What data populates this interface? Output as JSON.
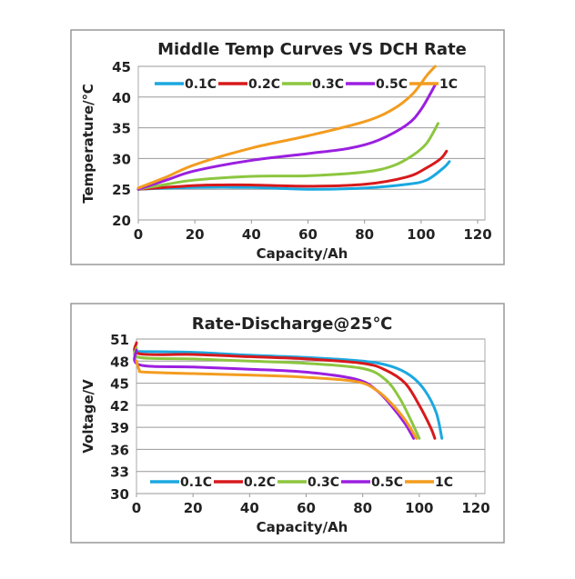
{
  "chart_data": [
    {
      "type": "line",
      "title": "Middle Temp Curves VS DCH Rate",
      "xlabel": "Capacity/Ah",
      "ylabel": "Temperature/℃",
      "xlim": [
        0,
        120
      ],
      "ylim": [
        20,
        45
      ],
      "xticks": [
        "0",
        "20",
        "40",
        "60",
        "80",
        "100",
        "120"
      ],
      "yticks": [
        "20",
        "25",
        "30",
        "35",
        "40",
        "45"
      ],
      "grid": "horizontal",
      "legend": "top",
      "series": [
        {
          "name": "0.1C",
          "color": "#1BA8E0",
          "x": [
            0,
            20,
            40,
            60,
            80,
            95,
            102,
            108,
            110
          ],
          "y": [
            25,
            25.3,
            25.3,
            25,
            25.2,
            25.8,
            26.5,
            28.5,
            29.5
          ]
        },
        {
          "name": "0.2C",
          "color": "#D7191C",
          "x": [
            0,
            20,
            30,
            40,
            60,
            80,
            95,
            102,
            107,
            109
          ],
          "y": [
            25,
            25.6,
            25.7,
            25.7,
            25.5,
            25.8,
            27,
            28.5,
            30,
            31.2
          ]
        },
        {
          "name": "0.3C",
          "color": "#8CC63F",
          "x": [
            0,
            10,
            20,
            40,
            60,
            80,
            90,
            97,
            102,
            106
          ],
          "y": [
            25,
            25.8,
            26.5,
            27.1,
            27.2,
            27.8,
            28.8,
            30.5,
            32.5,
            35.7
          ]
        },
        {
          "name": "0.5C",
          "color": "#9B1FE0",
          "x": [
            0,
            10,
            20,
            40,
            60,
            75,
            85,
            95,
            100,
            105
          ],
          "y": [
            25,
            26.5,
            28,
            29.7,
            30.8,
            31.7,
            33,
            35.5,
            38,
            42
          ]
        },
        {
          "name": "1C",
          "color": "#F39C1F",
          "x": [
            0,
            10,
            20,
            40,
            60,
            80,
            90,
            97,
            102,
            105
          ],
          "y": [
            25.2,
            27,
            29,
            31.7,
            33.7,
            36,
            38,
            40.5,
            43.5,
            45
          ]
        }
      ]
    },
    {
      "type": "line",
      "title": "Rate-Discharge@25℃",
      "xlabel": "Capacity/Ah",
      "ylabel": "Voltage/V",
      "xlim": [
        0,
        120
      ],
      "ylim": [
        30,
        51
      ],
      "xticks": [
        "0",
        "20",
        "40",
        "60",
        "80",
        "100",
        "120"
      ],
      "yticks": [
        "30",
        "33",
        "36",
        "39",
        "42",
        "45",
        "48",
        "51"
      ],
      "grid": "horizontal",
      "legend": "bottom",
      "series": [
        {
          "name": "0.1C",
          "color": "#1BA8E0",
          "x": [
            0,
            1,
            20,
            40,
            60,
            80,
            90,
            97,
            102,
            106,
            108
          ],
          "y": [
            49.3,
            49.3,
            49.2,
            48.8,
            48.5,
            48,
            47.3,
            46,
            44,
            41,
            37.5
          ]
        },
        {
          "name": "0.2C",
          "color": "#D7191C",
          "x": [
            0,
            1,
            20,
            40,
            60,
            80,
            88,
            95,
            100,
            104,
            105.5
          ],
          "y": [
            50.5,
            49,
            48.9,
            48.6,
            48.3,
            47.7,
            46.8,
            45,
            42,
            39,
            37.5
          ]
        },
        {
          "name": "0.3C",
          "color": "#8CC63F",
          "x": [
            0,
            1,
            20,
            40,
            60,
            80,
            88,
            93,
            97,
            100
          ],
          "y": [
            49.8,
            48.5,
            48.3,
            48,
            47.7,
            47,
            45.5,
            43,
            40,
            37.5
          ]
        },
        {
          "name": "0.5C",
          "color": "#9B1FE0",
          "x": [
            0,
            1,
            20,
            40,
            60,
            78,
            85,
            90,
            95,
            98
          ],
          "y": [
            49.5,
            47.5,
            47.2,
            46.9,
            46.5,
            45.5,
            44,
            42,
            39.5,
            37.5
          ]
        },
        {
          "name": "1C",
          "color": "#F39C1F",
          "x": [
            0,
            1,
            3,
            20,
            40,
            60,
            78,
            85,
            90,
            95,
            99
          ],
          "y": [
            48,
            46.8,
            46.5,
            46.3,
            46.1,
            45.8,
            45.2,
            44,
            42.3,
            40,
            37.5
          ]
        }
      ]
    }
  ]
}
